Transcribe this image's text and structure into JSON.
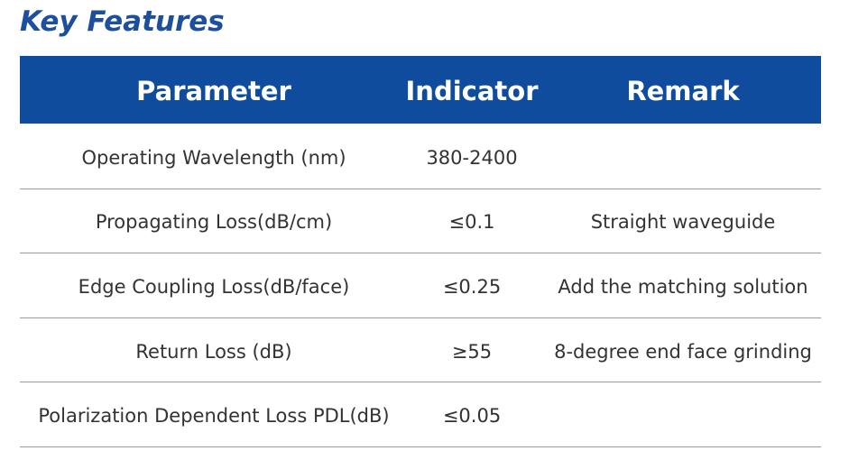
{
  "header": {
    "title": "Key Features"
  },
  "table": {
    "columns": [
      "Parameter",
      "Indicator",
      "Remark"
    ],
    "rows": [
      [
        "Operating Wavelength (nm)",
        "380-2400"
      ],
      [
        "Propagating Loss(dB/cm)",
        "≤0.1",
        "Straight waveguide"
      ],
      [
        "Edge Coupling Loss(dB/face)",
        "≤0.25",
        "Add the matching solution"
      ],
      [
        "Return Loss (dB)",
        "≥55",
        "8-degree end face grinding"
      ],
      [
        "Polarization Dependent Loss PDL(dB)",
        "≤0.05"
      ]
    ]
  }
}
